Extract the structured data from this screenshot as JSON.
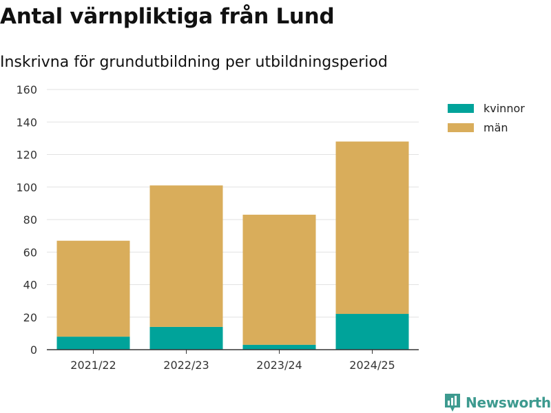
{
  "chart_data": {
    "type": "bar",
    "stacked": true,
    "title": "Antal värnpliktiga från Lund",
    "subtitle": "Inskrivna för grundutbildning per utbildningsperiod",
    "categories": [
      "2021/22",
      "2022/23",
      "2023/24",
      "2024/25"
    ],
    "series": [
      {
        "name": "kvinnor",
        "color": "#00a39a",
        "values": [
          8,
          14,
          3,
          22
        ]
      },
      {
        "name": "män",
        "color": "#d9ad5b",
        "values": [
          59,
          87,
          80,
          106
        ]
      }
    ],
    "ylim": [
      0,
      160
    ],
    "yticks": [
      "0",
      "20",
      "40",
      "60",
      "80",
      "100",
      "120",
      "140",
      "160"
    ],
    "xlabel": "",
    "ylabel": "",
    "grid": true,
    "legend": "top-right"
  },
  "branding": {
    "logo_text": "Newsworthy",
    "logo_color": "#3d9a8f"
  }
}
